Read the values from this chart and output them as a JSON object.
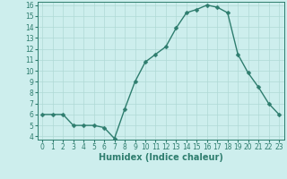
{
  "x": [
    0,
    1,
    2,
    3,
    4,
    5,
    6,
    7,
    8,
    9,
    10,
    11,
    12,
    13,
    14,
    15,
    16,
    17,
    18,
    19,
    20,
    21,
    22,
    23
  ],
  "y": [
    6.0,
    6.0,
    6.0,
    5.0,
    5.0,
    5.0,
    4.8,
    3.8,
    6.5,
    9.0,
    10.8,
    11.5,
    12.2,
    13.9,
    15.3,
    15.6,
    16.0,
    15.8,
    15.3,
    11.5,
    9.8,
    8.5,
    7.0,
    6.0
  ],
  "line_color": "#2e7d6e",
  "marker": "D",
  "marker_size": 2.5,
  "bg_color": "#cdeeed",
  "grid_color": "#afd9d5",
  "xlabel": "Humidex (Indice chaleur)",
  "ylim": [
    4,
    16
  ],
  "xlim": [
    -0.5,
    23.5
  ],
  "yticks": [
    4,
    5,
    6,
    7,
    8,
    9,
    10,
    11,
    12,
    13,
    14,
    15,
    16
  ],
  "xticks": [
    0,
    1,
    2,
    3,
    4,
    5,
    6,
    7,
    8,
    9,
    10,
    11,
    12,
    13,
    14,
    15,
    16,
    17,
    18,
    19,
    20,
    21,
    22,
    23
  ],
  "tick_fontsize": 5.5,
  "xlabel_fontsize": 7,
  "line_width": 1.0
}
